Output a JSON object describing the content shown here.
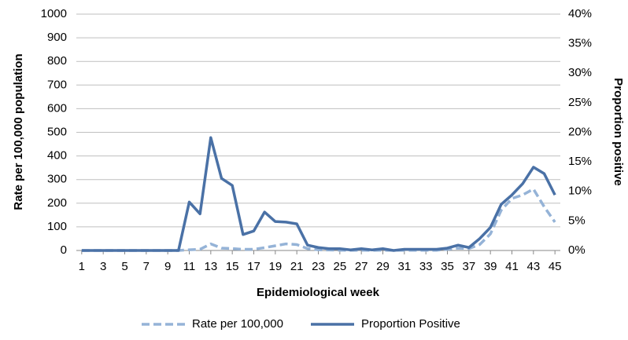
{
  "chart_data": {
    "type": "line",
    "x": [
      1,
      2,
      3,
      4,
      5,
      6,
      7,
      8,
      9,
      10,
      11,
      12,
      13,
      14,
      15,
      16,
      17,
      18,
      19,
      20,
      21,
      22,
      23,
      24,
      25,
      26,
      27,
      28,
      29,
      30,
      31,
      32,
      33,
      34,
      35,
      36,
      37,
      38,
      39,
      40,
      41,
      42,
      43,
      44,
      45
    ],
    "xlim": [
      0.5,
      45.5
    ],
    "xticks": [
      1,
      3,
      5,
      7,
      9,
      11,
      13,
      15,
      17,
      19,
      21,
      23,
      25,
      27,
      29,
      31,
      33,
      35,
      37,
      39,
      41,
      43,
      45
    ],
    "x_label": "Epidemiological week",
    "y_label": "Rate per 100,000 population",
    "y2_label": "Proportion positive",
    "ylim": [
      0,
      1000
    ],
    "yticks": [
      0,
      100,
      200,
      300,
      400,
      500,
      600,
      700,
      800,
      900,
      1000
    ],
    "y2lim": [
      0,
      40
    ],
    "y2ticks": [
      {
        "value": 0,
        "label": "0%"
      },
      {
        "value": 5,
        "label": "5%"
      },
      {
        "value": 10,
        "label": "10%"
      },
      {
        "value": 15,
        "label": "15%"
      },
      {
        "value": 20,
        "label": "20%"
      },
      {
        "value": 25,
        "label": "25%"
      },
      {
        "value": 30,
        "label": "30%"
      },
      {
        "value": 35,
        "label": "35%"
      },
      {
        "value": 40,
        "label": "40%"
      }
    ],
    "grid": true,
    "legend": "bottom",
    "series": [
      {
        "name": "Rate per 100,000",
        "color": "#95b3d7",
        "dash": true,
        "values": [
          0,
          0,
          0,
          0,
          0,
          0,
          0,
          0,
          0,
          0,
          3,
          5,
          28,
          10,
          8,
          5,
          5,
          12,
          20,
          28,
          25,
          8,
          3,
          2,
          1,
          1,
          1,
          1,
          1,
          1,
          1,
          1,
          1,
          1,
          5,
          10,
          8,
          25,
          70,
          170,
          220,
          235,
          260,
          185,
          120
        ]
      },
      {
        "name": "Proportion Positive",
        "color": "#4a71a6",
        "axis": "y2",
        "values": [
          0,
          0,
          0,
          0,
          0,
          0,
          0,
          0,
          0,
          0,
          8.2,
          6.2,
          19.1,
          12.2,
          11.0,
          2.7,
          3.3,
          6.5,
          4.9,
          4.8,
          4.5,
          0.9,
          0.5,
          0.3,
          0.3,
          0.1,
          0.3,
          0.1,
          0.3,
          0,
          0.2,
          0.2,
          0.2,
          0.2,
          0.4,
          0.9,
          0.5,
          2.0,
          3.9,
          7.8,
          9.4,
          11.3,
          14.1,
          13.0,
          9.4
        ]
      }
    ]
  }
}
